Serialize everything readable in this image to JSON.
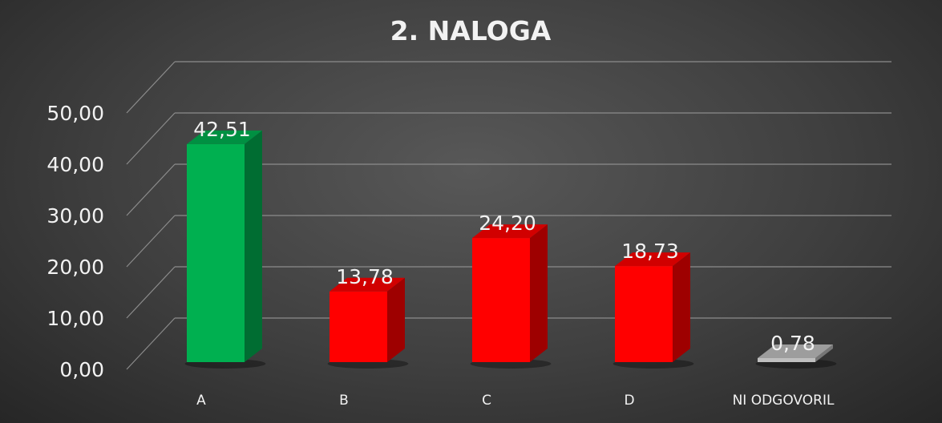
{
  "chart_data": {
    "type": "bar",
    "title": "2. NALOGA",
    "categories": [
      "A",
      "B",
      "C",
      "D",
      "NI ODGOVORIL"
    ],
    "values": [
      42.51,
      13.78,
      24.2,
      18.73,
      0.78
    ],
    "value_labels": [
      "42,51",
      "13,78",
      "24,20",
      "18,73",
      "0,78"
    ],
    "point_colors": [
      "#00b050",
      "#ff0000",
      "#ff0000",
      "#ff0000",
      "#bfbfbf"
    ],
    "ylim": [
      0,
      50
    ],
    "yticks": [
      0,
      10,
      20,
      30,
      40,
      50
    ],
    "ytick_labels": [
      "0,00",
      "10,00",
      "20,00",
      "30,00",
      "40,00",
      "50,00"
    ],
    "xlabel": "",
    "ylabel": "",
    "grid": true,
    "legend": "none",
    "style": "3d-column"
  }
}
